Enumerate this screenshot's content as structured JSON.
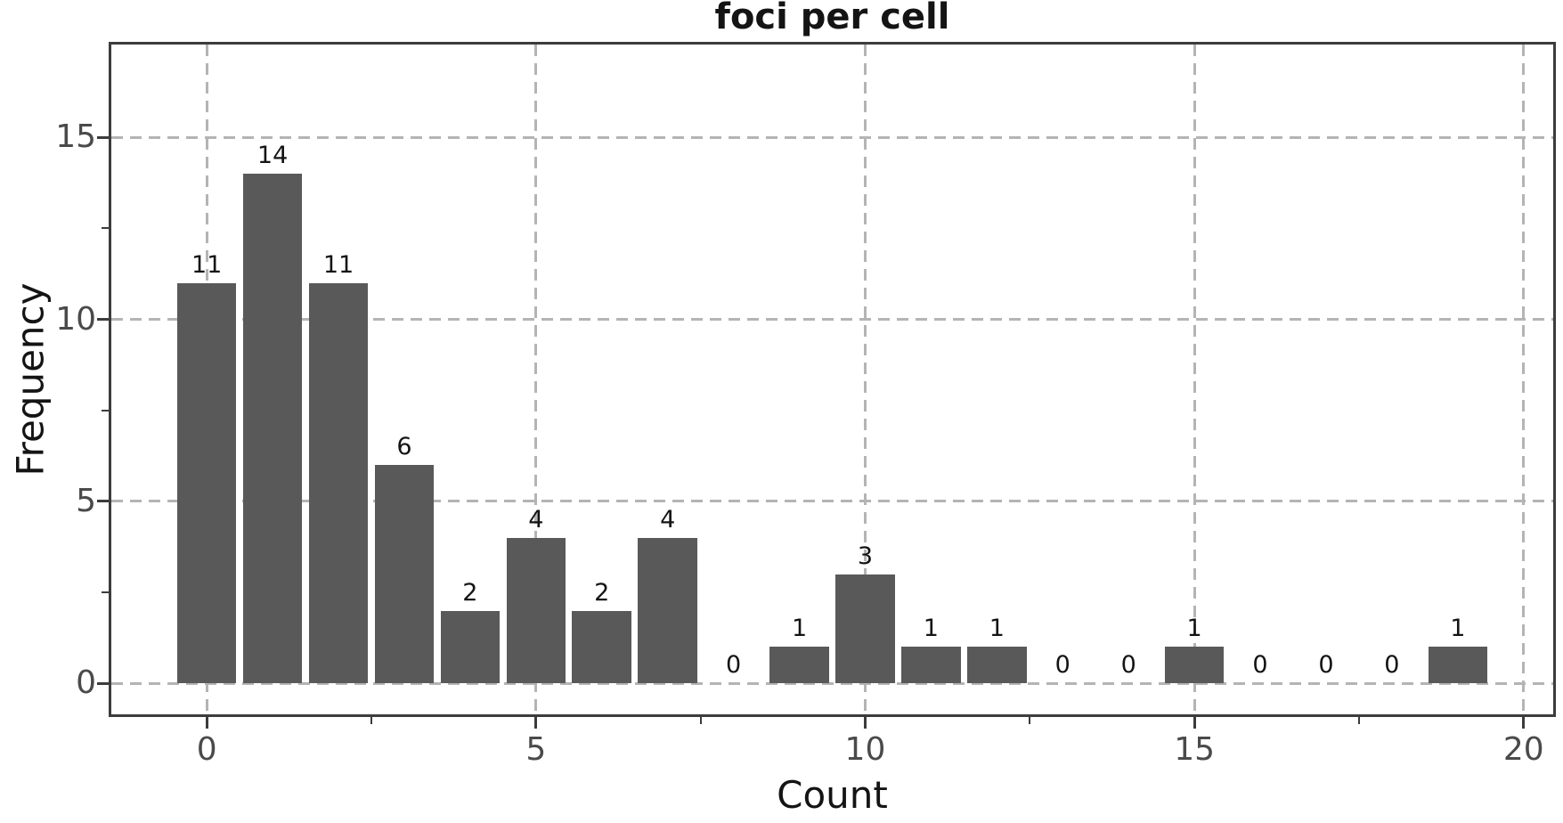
{
  "chart_data": {
    "type": "bar",
    "title": "foci per cell",
    "xlabel": "Count",
    "ylabel": "Frequency",
    "categories": [
      0,
      1,
      2,
      3,
      4,
      5,
      6,
      7,
      8,
      9,
      10,
      11,
      12,
      13,
      14,
      15,
      16,
      17,
      18,
      19
    ],
    "values": [
      11,
      14,
      11,
      6,
      2,
      4,
      2,
      4,
      0,
      1,
      3,
      1,
      1,
      0,
      0,
      1,
      0,
      0,
      0,
      1
    ],
    "bar_labels": [
      "11",
      "14",
      "11",
      "6",
      "2",
      "4",
      "2",
      "4",
      "0",
      "1",
      "3",
      "1",
      "1",
      "0",
      "0",
      "1",
      "0",
      "0",
      "0",
      "1"
    ],
    "xticks": [
      0,
      5,
      10,
      15,
      20
    ],
    "xtick_labels": [
      "0",
      "5",
      "10",
      "15",
      "20"
    ],
    "yticks": [
      0,
      5,
      10,
      15
    ],
    "ytick_labels": [
      "0",
      "5",
      "10",
      "15"
    ],
    "x_minor_ticks": [
      2.5,
      7.5,
      12.5,
      17.5
    ],
    "y_minor_ticks": [
      2.5,
      7.5,
      12.5
    ],
    "xlim": [
      -1.45,
      20.45
    ],
    "ylim": [
      -0.85,
      17.55
    ],
    "bar_width": 0.9,
    "grid": {
      "style": "dashed",
      "axes": "both"
    },
    "legend": "none",
    "colors": {
      "bar": "#595959",
      "grid": "#b4b4b4",
      "spine": "#3c3c3c",
      "tick_label": "#4a4a4a",
      "text": "#141414",
      "background": "#ffffff"
    }
  }
}
